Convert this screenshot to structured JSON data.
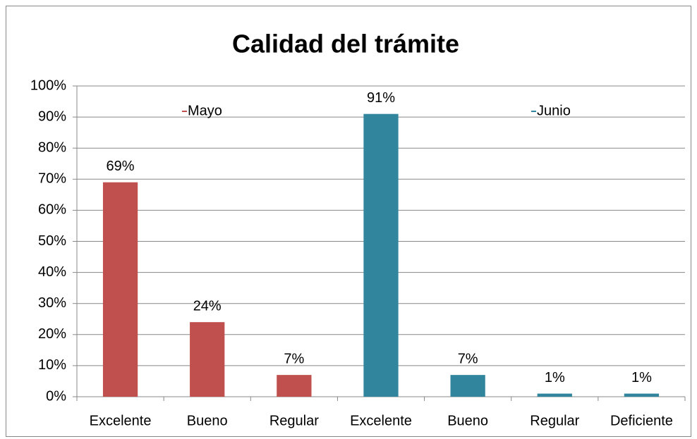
{
  "chart_data": {
    "type": "bar",
    "title": "Calidad del trámite",
    "categories": [
      "Excelente",
      "Bueno",
      "Regular",
      "Excelente",
      "Bueno",
      "Regular",
      "Deficiente"
    ],
    "series": [
      {
        "name": "Mayo",
        "color": "#c0504d",
        "values": [
          69,
          24,
          7,
          null,
          null,
          null,
          null
        ],
        "value_labels": [
          "69%",
          "24%",
          "7%",
          null,
          null,
          null,
          null
        ]
      },
      {
        "name": "Junio",
        "color": "#31859c",
        "values": [
          null,
          null,
          null,
          91,
          7,
          1,
          1
        ],
        "value_labels": [
          null,
          null,
          null,
          "91%",
          "7%",
          "1%",
          "1%"
        ]
      }
    ],
    "ylim": [
      0,
      100
    ],
    "yticks": [
      {
        "value": 0,
        "label": "0%"
      },
      {
        "value": 10,
        "label": "10%"
      },
      {
        "value": 20,
        "label": "20%"
      },
      {
        "value": 30,
        "label": "30%"
      },
      {
        "value": 40,
        "label": "40%"
      },
      {
        "value": 50,
        "label": "50%"
      },
      {
        "value": 60,
        "label": "60%"
      },
      {
        "value": 70,
        "label": "70%"
      },
      {
        "value": 80,
        "label": "80%"
      },
      {
        "value": 90,
        "label": "90%"
      },
      {
        "value": 100,
        "label": "100%"
      }
    ],
    "grid": true
  }
}
